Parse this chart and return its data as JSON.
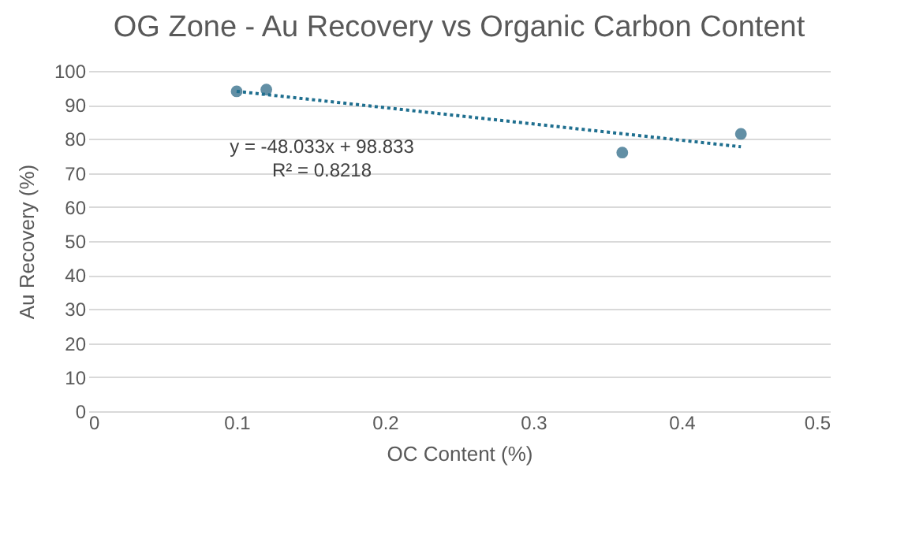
{
  "chart_data": {
    "type": "scatter",
    "title": "OG Zone - Au Recovery vs Organic Carbon Content",
    "xlabel": "OC Content (%)",
    "ylabel": "Au Recovery (%)",
    "series": [
      {
        "color": "#1f5f7f",
        "x": [
          0.1,
          0.12,
          0.36,
          0.44
        ],
        "values": [
          94,
          94.5,
          76,
          81.5
        ]
      },
      {
        "type": "line",
        "color": "#1f6f8f",
        "line_style": "dotted",
        "marker": "none",
        "x": [
          0.1,
          0.44
        ],
        "values": [
          94,
          77.7
        ]
      }
    ],
    "annotations": [
      "y = -48.033x + 98.833",
      "R² = 0.8218"
    ],
    "xlim": [
      0,
      0.5
    ],
    "xticks": [
      0,
      0.1,
      0.2,
      0.3,
      0.4,
      0.5
    ],
    "ylim": [
      0,
      100
    ],
    "yticks": [
      0,
      10,
      20,
      30,
      40,
      50,
      60,
      70,
      80,
      90,
      100
    ],
    "grid": "y",
    "marker": "circle"
  }
}
